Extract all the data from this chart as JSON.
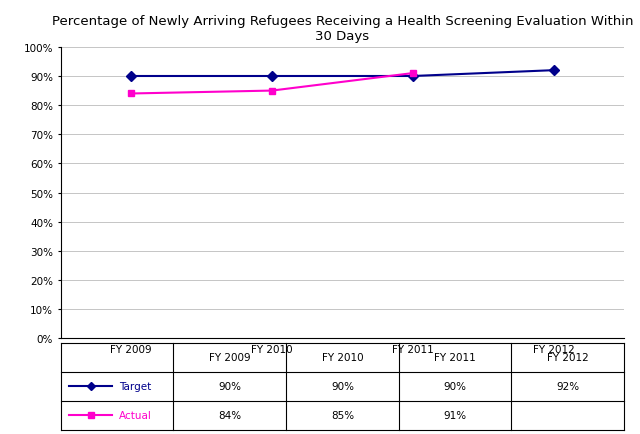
{
  "title": "Percentage of Newly Arriving Refugees Receiving a Health Screening Evaluation Within\n30 Days",
  "x_labels": [
    "FY 2009",
    "FY 2010",
    "FY 2011",
    "FY 2012"
  ],
  "x_values": [
    0,
    1,
    2,
    3
  ],
  "target_values": [
    90,
    90,
    90,
    92
  ],
  "actual_values": [
    84,
    85,
    91,
    null
  ],
  "target_color": "#00008B",
  "actual_color": "#FF00CC",
  "ylim": [
    0,
    100
  ],
  "yticks": [
    0,
    10,
    20,
    30,
    40,
    50,
    60,
    70,
    80,
    90,
    100
  ],
  "ytick_labels": [
    "0%",
    "10%",
    "20%",
    "30%",
    "40%",
    "50%",
    "60%",
    "70%",
    "80%",
    "90%",
    "100%"
  ],
  "table_header": [
    "",
    "FY 2009",
    "FY 2010",
    "FY 2011",
    "FY 2012"
  ],
  "table_target_row": [
    "Target",
    "90%",
    "90%",
    "90%",
    "92%"
  ],
  "table_actual_row": [
    "Actual",
    "84%",
    "85%",
    "91%",
    ""
  ],
  "background_color": "#ffffff",
  "grid_color": "#bbbbbb",
  "title_fontsize": 9.5,
  "tick_fontsize": 7.5,
  "table_fontsize": 7.5
}
